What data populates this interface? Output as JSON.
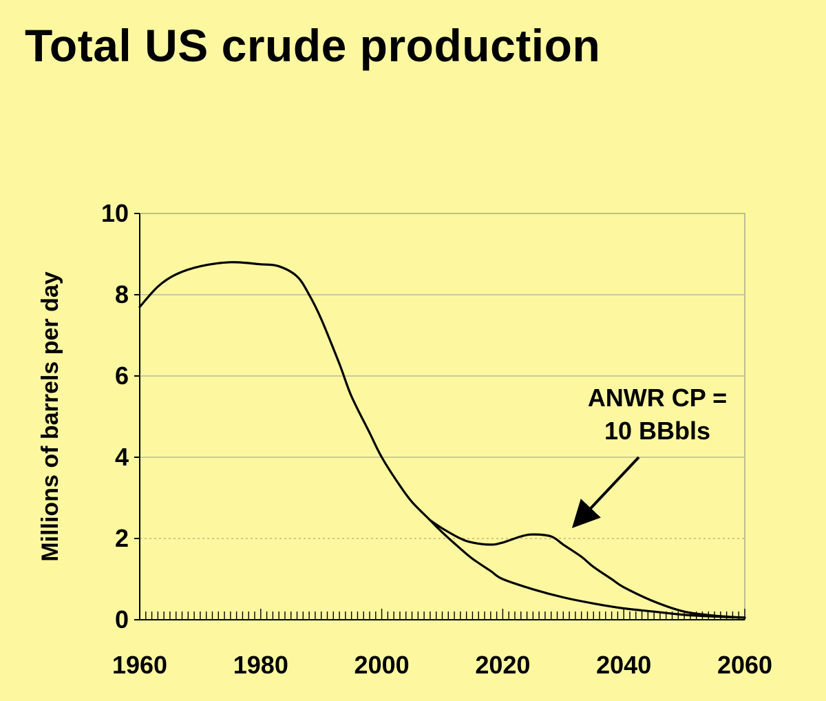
{
  "title": "Total US crude production",
  "chart_data": {
    "type": "line",
    "title": "Total US crude production",
    "xlabel": "",
    "ylabel": "Millions of barrels per day",
    "xlim": [
      1960,
      2060
    ],
    "ylim": [
      0,
      10
    ],
    "x_ticks": [
      1960,
      1980,
      2000,
      2020,
      2040,
      2060
    ],
    "y_ticks": [
      0,
      2,
      4,
      6,
      8,
      10
    ],
    "grid": "horizontal",
    "legend": "none",
    "series": [
      {
        "x": [
          1960,
          1963,
          1966,
          1970,
          1975,
          1980,
          1983,
          1986,
          1988,
          1990,
          1993,
          1995,
          1998,
          2000,
          2003,
          2005,
          2008,
          2010,
          2013,
          2015,
          2018,
          2020,
          2025,
          2030,
          2035,
          2040,
          2045,
          2050,
          2055,
          2060
        ],
        "values": [
          7.7,
          8.2,
          8.5,
          8.7,
          8.8,
          8.75,
          8.7,
          8.45,
          8.0,
          7.4,
          6.3,
          5.5,
          4.6,
          4.0,
          3.3,
          2.9,
          2.45,
          2.15,
          1.75,
          1.5,
          1.2,
          1.0,
          0.75,
          0.55,
          0.4,
          0.28,
          0.2,
          0.12,
          0.08,
          0.05
        ]
      },
      {
        "x": [
          2008,
          2010,
          2013,
          2015,
          2018,
          2020,
          2023,
          2025,
          2028,
          2030,
          2033,
          2035,
          2038,
          2040,
          2045,
          2050,
          2055,
          2060
        ],
        "values": [
          2.45,
          2.25,
          2.0,
          1.9,
          1.85,
          1.9,
          2.05,
          2.1,
          2.05,
          1.85,
          1.55,
          1.3,
          1.0,
          0.8,
          0.45,
          0.2,
          0.1,
          0.05
        ]
      }
    ],
    "annotations": [
      {
        "lines": [
          "ANWR CP =",
          "10 BBbls"
        ],
        "arrow_target": {
          "x": 2032,
          "y": 2.35
        }
      }
    ]
  }
}
